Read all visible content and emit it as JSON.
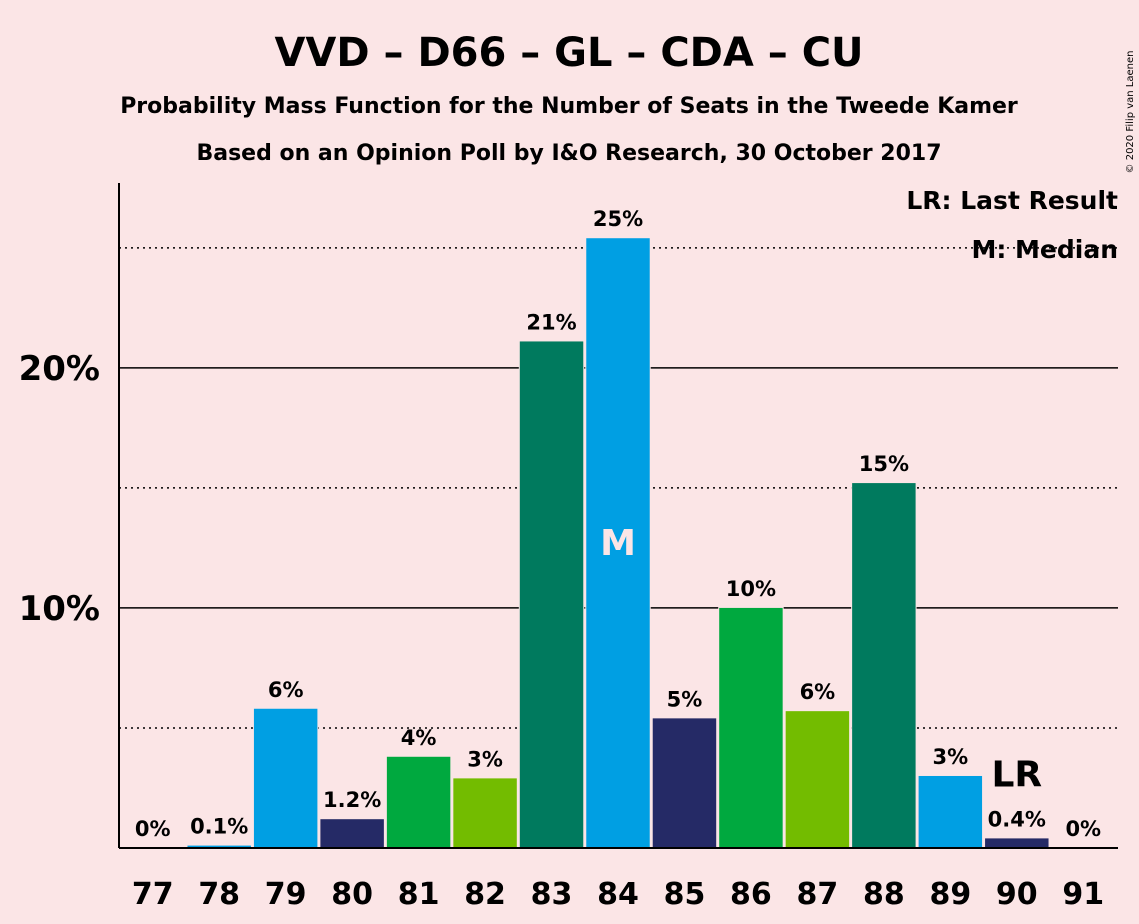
{
  "chart_data": {
    "type": "bar",
    "title": "VVD – D66 – GL – CDA – CU",
    "subtitle": "Probability Mass Function for the Number of Seats in the Tweede Kamer",
    "subtitle2": "Based on an Opinion Poll by I&O Research, 30 October 2017",
    "copyright": "© 2020 Filip van Laenen",
    "categories": [
      "77",
      "78",
      "79",
      "80",
      "81",
      "82",
      "83",
      "84",
      "85",
      "86",
      "87",
      "88",
      "89",
      "90",
      "91"
    ],
    "values": [
      0,
      0.1,
      5.8,
      1.2,
      3.8,
      2.9,
      21.1,
      25.4,
      5.4,
      10.0,
      5.7,
      15.2,
      3.0,
      0.4,
      0
    ],
    "data_labels": [
      "0%",
      "0.1%",
      "6%",
      "1.2%",
      "4%",
      "3%",
      "21%",
      "25%",
      "5%",
      "10%",
      "6%",
      "15%",
      "3%",
      "0.4%",
      "0%"
    ],
    "colors": [
      "#009fe3",
      "#009fe3",
      "#009fe3",
      "#252a66",
      "#00a93f",
      "#73bc00",
      "#007a5e",
      "#009fe3",
      "#252a66",
      "#00a93f",
      "#73bc00",
      "#007a5e",
      "#009fe3",
      "#252a66",
      "#00a93f"
    ],
    "ylim": [
      0,
      27.7
    ],
    "yticks": [
      {
        "value": 10,
        "label": "10%"
      },
      {
        "value": 20,
        "label": "20%"
      }
    ],
    "minor_gridlines": [
      5,
      15,
      25
    ],
    "median_index": 7,
    "median_marker": "M",
    "last_result_index": 13,
    "last_result_marker": "LR",
    "legend": [
      "LR: Last Result",
      "M: Median"
    ],
    "legend_position": "top-right",
    "xlabel": "",
    "ylabel": ""
  }
}
